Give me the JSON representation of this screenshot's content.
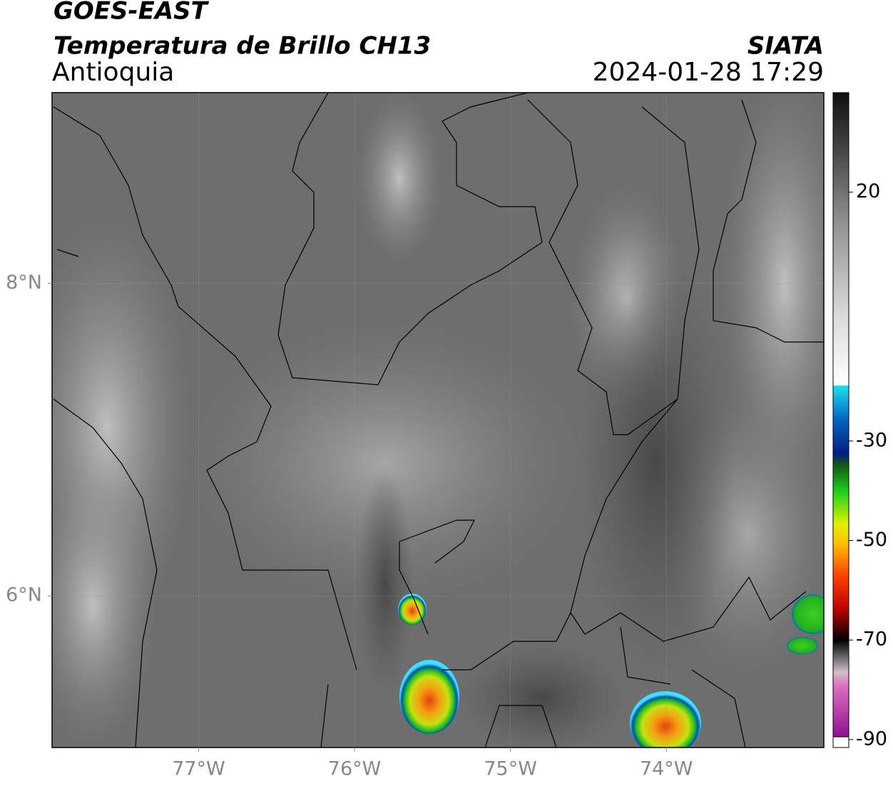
{
  "header": {
    "satellite": "GOES-EAST",
    "product": "Temperatura de Brillo CH13",
    "region": "Antioquia",
    "source": "SIATA",
    "datetime": "2024-01-28 17:29"
  },
  "map": {
    "xlim": [
      -77.94,
      -72.99
    ],
    "ylim": [
      5.03,
      9.22
    ],
    "xticks": [
      {
        "value": -77,
        "label": "77°W"
      },
      {
        "value": -76,
        "label": "76°W"
      },
      {
        "value": -75,
        "label": "75°W"
      },
      {
        "value": -74,
        "label": "74°W"
      }
    ],
    "yticks": [
      {
        "value": 6,
        "label": "6°N"
      },
      {
        "value": 8,
        "label": "8°N"
      }
    ],
    "grid": true
  },
  "colorbar": {
    "lim": [
      -91.6,
      40
    ],
    "ticks": [
      20,
      -30,
      -50,
      -70,
      -90
    ]
  }
}
